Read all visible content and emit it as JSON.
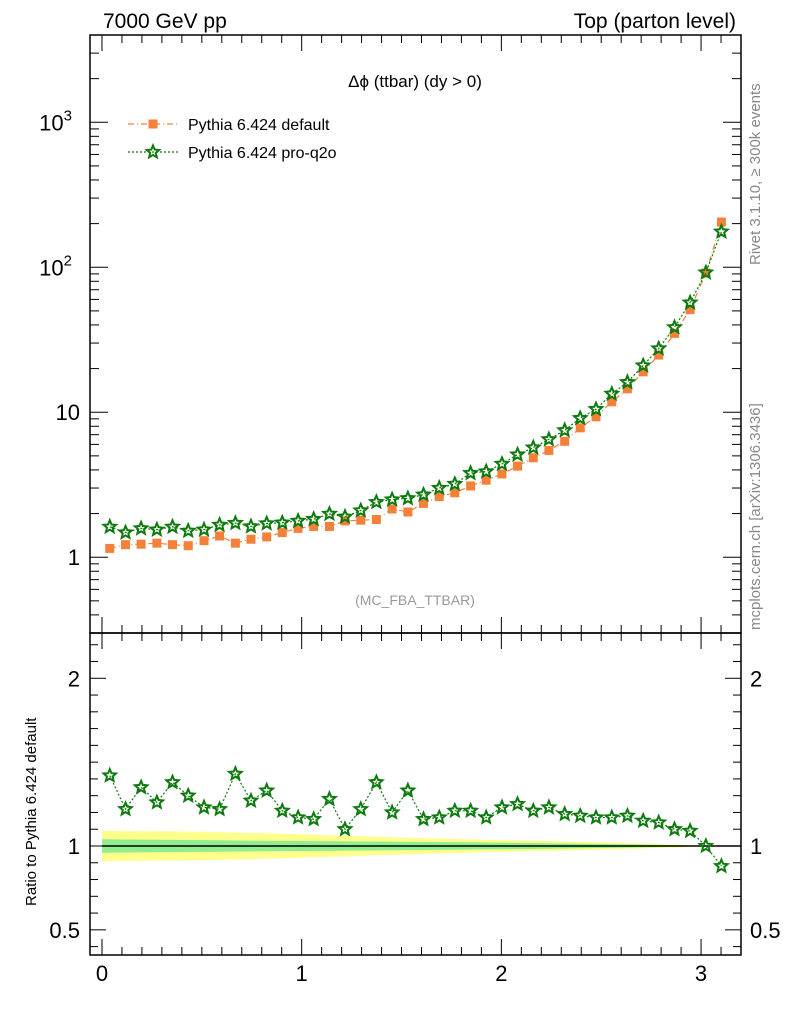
{
  "header": {
    "left": "7000 GeV pp",
    "right": "Top (parton level)"
  },
  "side": {
    "rivet": "Rivet 3.1.10, ≥ 300k events",
    "mcplots": "mcplots.cern.ch [arXiv:1306.3436]"
  },
  "colors": {
    "default": "#f4813a",
    "proq2o": "#0d7a0d",
    "band_inner": "#90ee90",
    "band_outer": "#ffff8c"
  },
  "chart_data": [
    {
      "type": "line",
      "title": "Δϕ (ttbar) (dy > 0)",
      "annotation": "(MC_FBA_TTBAR)",
      "yscale": "log",
      "ylim": [
        0.3,
        4000
      ],
      "xlim": [
        -0.06,
        3.2
      ],
      "yticks": [
        {
          "value": 1,
          "label": "1"
        },
        {
          "value": 10,
          "label": "10"
        },
        {
          "value": 100,
          "label": "10",
          "sup": "2"
        },
        {
          "value": 1000,
          "label": "10",
          "sup": "3"
        }
      ],
      "legend_position": "top-left",
      "x": [
        0.039,
        0.118,
        0.196,
        0.275,
        0.353,
        0.432,
        0.511,
        0.589,
        0.668,
        0.746,
        0.825,
        0.903,
        0.982,
        1.06,
        1.139,
        1.217,
        1.296,
        1.374,
        1.453,
        1.532,
        1.61,
        1.689,
        1.767,
        1.846,
        1.924,
        2.003,
        2.081,
        2.16,
        2.238,
        2.317,
        2.395,
        2.474,
        2.553,
        2.631,
        2.71,
        2.788,
        2.867,
        2.945,
        3.024,
        3.102
      ],
      "series": [
        {
          "name": "Pythia 6.424 default",
          "marker": "square",
          "line": "dash-dot",
          "values": [
            1.15,
            1.22,
            1.23,
            1.25,
            1.22,
            1.2,
            1.3,
            1.4,
            1.25,
            1.33,
            1.38,
            1.48,
            1.58,
            1.63,
            1.63,
            1.78,
            1.8,
            1.82,
            2.15,
            2.05,
            2.35,
            2.62,
            2.78,
            3.1,
            3.4,
            3.75,
            4.25,
            4.85,
            5.45,
            6.3,
            7.8,
            9.3,
            11.8,
            14.5,
            19.0,
            24.8,
            35.0,
            51.0,
            91.0,
            205.0
          ]
        },
        {
          "name": "Pythia 6.424 pro-q2o",
          "marker": "star",
          "line": "dotted",
          "values": [
            1.62,
            1.48,
            1.58,
            1.55,
            1.62,
            1.52,
            1.55,
            1.67,
            1.72,
            1.63,
            1.71,
            1.73,
            1.78,
            1.83,
            1.99,
            1.9,
            2.1,
            2.4,
            2.5,
            2.55,
            2.7,
            3.0,
            3.2,
            3.8,
            3.9,
            4.4,
            5.1,
            5.7,
            6.5,
            7.5,
            9.1,
            10.5,
            13.4,
            16.1,
            21.0,
            27.5,
            38.5,
            57.0,
            92.0,
            176.0
          ]
        }
      ]
    },
    {
      "type": "line",
      "ylabel": "Ratio to Pythia 6.424 default",
      "ylim": [
        0.35,
        2.27
      ],
      "xlim": [
        -0.06,
        3.2
      ],
      "xticks": [
        {
          "value": 0,
          "label": "0"
        },
        {
          "value": 1,
          "label": "1"
        },
        {
          "value": 2,
          "label": "2"
        },
        {
          "value": 3,
          "label": "3"
        }
      ],
      "yticks": [
        {
          "value": 0.5,
          "label": "0.5"
        },
        {
          "value": 1,
          "label": "1"
        },
        {
          "value": 2,
          "label": "2"
        }
      ],
      "reference": 1,
      "band_inner": {
        "x": [
          0,
          0.5,
          1.0,
          1.5,
          2.0,
          2.5,
          2.9,
          3.02
        ],
        "lo": [
          0.96,
          0.965,
          0.97,
          0.975,
          0.98,
          0.988,
          0.995,
          1.0
        ],
        "hi": [
          1.04,
          1.035,
          1.03,
          1.025,
          1.02,
          1.012,
          1.005,
          1.0
        ]
      },
      "band_outer": {
        "x": [
          0,
          0.5,
          1.0,
          1.5,
          2.0,
          2.5,
          2.9,
          3.02
        ],
        "lo": [
          0.91,
          0.915,
          0.93,
          0.95,
          0.965,
          0.978,
          0.992,
          1.0
        ],
        "hi": [
          1.09,
          1.085,
          1.07,
          1.05,
          1.035,
          1.022,
          1.008,
          1.0
        ]
      },
      "series": [
        {
          "name": "Pythia 6.424 pro-q2o",
          "marker": "star",
          "line": "dotted",
          "values": [
            1.42,
            1.22,
            1.35,
            1.26,
            1.38,
            1.3,
            1.23,
            1.22,
            1.43,
            1.27,
            1.33,
            1.21,
            1.17,
            1.16,
            1.28,
            1.1,
            1.22,
            1.38,
            1.2,
            1.33,
            1.16,
            1.17,
            1.21,
            1.21,
            1.17,
            1.23,
            1.25,
            1.21,
            1.23,
            1.19,
            1.18,
            1.17,
            1.17,
            1.18,
            1.15,
            1.14,
            1.1,
            1.09,
            1.0,
            0.88
          ]
        }
      ]
    }
  ]
}
